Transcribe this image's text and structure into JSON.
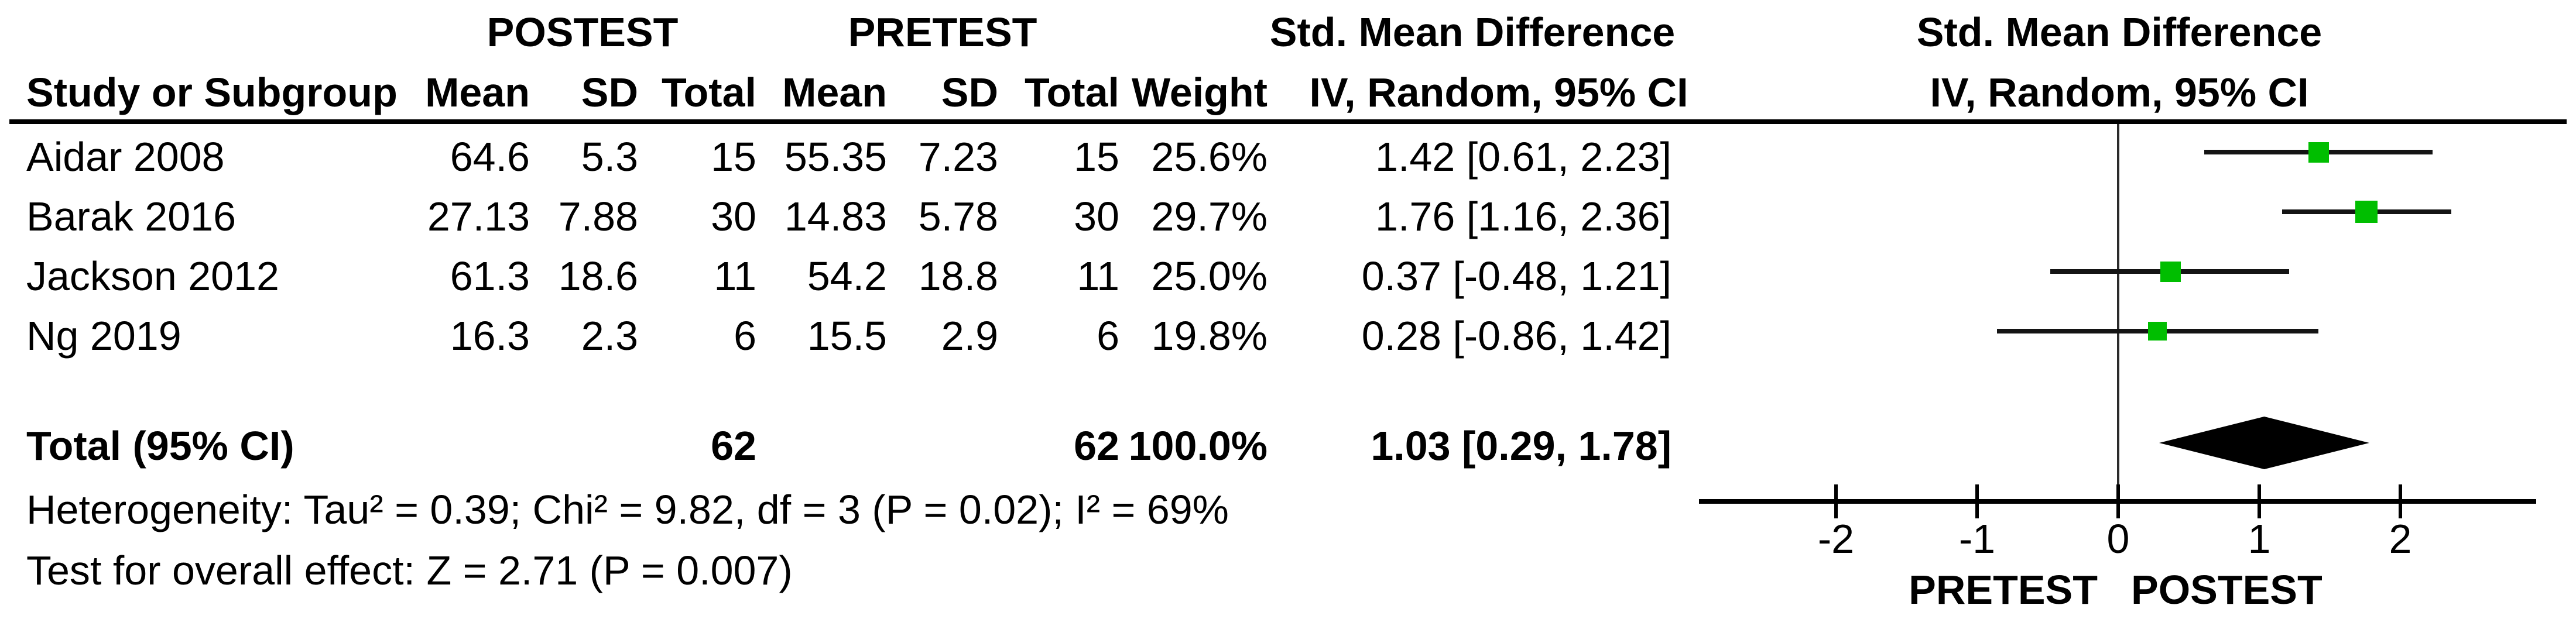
{
  "figure": {
    "group_headers": {
      "postest": "POSTEST",
      "pretest": "PRETEST"
    },
    "smd_header_left": {
      "line1": "Std. Mean Difference",
      "line2": "IV, Random, 95% CI"
    },
    "smd_header_right": {
      "line1": "Std. Mean Difference",
      "line2": "IV, Random, 95% CI"
    },
    "col_headers": {
      "study": "Study or Subgroup",
      "mean_post": "Mean",
      "sd_post": "SD",
      "total_post": "Total",
      "mean_pre": "Mean",
      "sd_pre": "SD",
      "total_pre": "Total",
      "weight": "Weight"
    },
    "rows": [
      {
        "study": "Aidar 2008",
        "mean_post": "64.6",
        "sd_post": "5.3",
        "total_post": "15",
        "mean_pre": "55.35",
        "sd_pre": "7.23",
        "total_pre": "15",
        "weight": "25.6%",
        "ci": "1.42 [0.61, 2.23]"
      },
      {
        "study": "Barak 2016",
        "mean_post": "27.13",
        "sd_post": "7.88",
        "total_post": "30",
        "mean_pre": "14.83",
        "sd_pre": "5.78",
        "total_pre": "30",
        "weight": "29.7%",
        "ci": "1.76 [1.16, 2.36]"
      },
      {
        "study": "Jackson 2012",
        "mean_post": "61.3",
        "sd_post": "18.6",
        "total_post": "11",
        "mean_pre": "54.2",
        "sd_pre": "18.8",
        "total_pre": "11",
        "weight": "25.0%",
        "ci": "0.37 [-0.48, 1.21]"
      },
      {
        "study": "Ng 2019",
        "mean_post": "16.3",
        "sd_post": "2.3",
        "total_post": "6",
        "mean_pre": "15.5",
        "sd_pre": "2.9",
        "total_pre": "6",
        "weight": "19.8%",
        "ci": "0.28 [-0.86, 1.42]"
      }
    ],
    "total_row": {
      "label": "Total (95% CI)",
      "total_post": "62",
      "total_pre": "62",
      "weight": "100.0%",
      "ci": "1.03 [0.29, 1.78]"
    },
    "footnotes": {
      "heterogeneity": "Heterogeneity: Tau² = 0.39; Chi² = 9.82, df = 3 (P = 0.02); I² = 69%",
      "overall_effect": "Test for overall effect: Z = 2.71 (P = 0.007)"
    }
  },
  "colors": {
    "marker_green": "#00be00",
    "ci_line": "#141414",
    "axis_black": "#000000",
    "diamond_black": "#000000"
  },
  "chart_data": {
    "type": "forest",
    "title": "Std. Mean Difference",
    "method": "IV, Random, 95% CI",
    "x_ticks": [
      -2,
      -1,
      0,
      1,
      2
    ],
    "x_range_drawn": [
      -2.97,
      2.96
    ],
    "favours_left": "PRETEST",
    "favours_right": "POSTEST",
    "studies": [
      {
        "name": "Aidar 2008",
        "est": 1.42,
        "lo": 0.61,
        "hi": 2.23,
        "weight_pct": 25.6
      },
      {
        "name": "Barak 2016",
        "est": 1.76,
        "lo": 1.16,
        "hi": 2.36,
        "weight_pct": 29.7
      },
      {
        "name": "Jackson 2012",
        "est": 0.37,
        "lo": -0.48,
        "hi": 1.21,
        "weight_pct": 25.0
      },
      {
        "name": "Ng 2019",
        "est": 0.28,
        "lo": -0.86,
        "hi": 1.42,
        "weight_pct": 19.8
      }
    ],
    "total": {
      "name": "Total (95% CI)",
      "est": 1.03,
      "lo": 0.29,
      "hi": 1.78,
      "weight_pct": 100.0
    },
    "heterogeneity": {
      "tau2": 0.39,
      "chi2": 9.82,
      "df": 3,
      "p": 0.02,
      "i2_pct": 69
    },
    "overall_effect": {
      "z": 2.71,
      "p": 0.007
    }
  }
}
